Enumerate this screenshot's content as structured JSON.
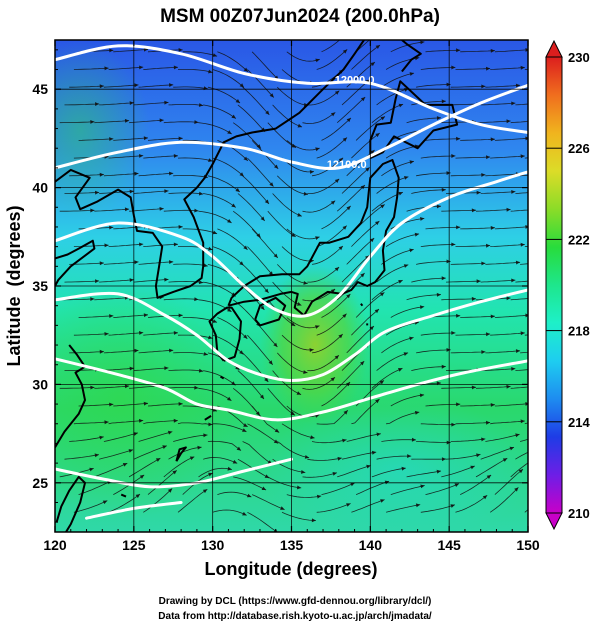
{
  "title": "MSM 00Z07Jun2024 (200.0hPa)",
  "xlabel": "Longitude (degrees)",
  "ylabel": "Latitude  (degrees)",
  "credit_line1": "Drawing by DCL (https://www.gfd-dennou.org/library/dcl/)",
  "credit_line2": "Data from http://database.rish.kyoto-u.ac.jp/arch/jmadata/",
  "map": {
    "lon_range": [
      120,
      150
    ],
    "lat_range": [
      22.5,
      47.5
    ],
    "x_ticks": [
      120,
      125,
      130,
      135,
      140,
      145,
      150
    ],
    "y_ticks": [
      25,
      30,
      35,
      40,
      45
    ],
    "grid": true,
    "contour_labels": [
      {
        "text": "12000.0",
        "lon": 139.0,
        "lat": 45.3
      },
      {
        "text": "12100.0",
        "lon": 138.5,
        "lat": 41.0
      }
    ],
    "contours": [
      [
        [
          120,
          46.5
        ],
        [
          124,
          47.2
        ],
        [
          128,
          46.8
        ],
        [
          132,
          45.8
        ],
        [
          136,
          45.3
        ],
        [
          140,
          45.3
        ],
        [
          144,
          44.0
        ],
        [
          147,
          43.2
        ],
        [
          150,
          42.8
        ]
      ],
      [
        [
          120,
          41.0
        ],
        [
          124,
          41.8
        ],
        [
          128,
          42.3
        ],
        [
          132,
          42.0
        ],
        [
          135,
          41.3
        ],
        [
          138,
          41.0
        ],
        [
          141,
          42.0
        ],
        [
          144,
          43.2
        ],
        [
          147,
          44.3
        ],
        [
          150,
          45.2
        ]
      ],
      [
        [
          120,
          37.3
        ],
        [
          124,
          38.2
        ],
        [
          128,
          37.5
        ],
        [
          130,
          36.5
        ],
        [
          132,
          35.0
        ],
        [
          134,
          33.8
        ],
        [
          136,
          33.5
        ],
        [
          138,
          34.5
        ],
        [
          140,
          36.5
        ],
        [
          142,
          38.2
        ],
        [
          145,
          39.5
        ],
        [
          148,
          40.3
        ],
        [
          150,
          40.8
        ]
      ],
      [
        [
          120,
          34.3
        ],
        [
          124,
          34.6
        ],
        [
          127,
          33.5
        ],
        [
          129,
          32.5
        ],
        [
          131,
          31.2
        ],
        [
          133,
          30.5
        ],
        [
          135,
          30.2
        ],
        [
          137,
          30.5
        ],
        [
          139,
          31.5
        ],
        [
          141,
          32.7
        ],
        [
          144,
          33.5
        ],
        [
          147,
          34.2
        ],
        [
          150,
          34.8
        ]
      ],
      [
        [
          120,
          31.3
        ],
        [
          124,
          30.5
        ],
        [
          127,
          29.8
        ],
        [
          129,
          29.0
        ],
        [
          131,
          28.7
        ],
        [
          134,
          28.2
        ],
        [
          137,
          28.6
        ],
        [
          140,
          29.3
        ],
        [
          143,
          30.0
        ],
        [
          146,
          30.6
        ],
        [
          150,
          31.2
        ]
      ],
      [
        [
          120,
          25.7
        ],
        [
          123,
          25.2
        ],
        [
          126,
          24.8
        ],
        [
          129,
          25.0
        ],
        [
          132,
          25.6
        ],
        [
          135,
          26.2
        ]
      ],
      [
        [
          122,
          23.2
        ],
        [
          125,
          23.7
        ],
        [
          128,
          24.0
        ]
      ]
    ],
    "coastlines": [
      [
        [
          130.7,
          31.2
        ],
        [
          131.4,
          31.4
        ],
        [
          131.7,
          32.3
        ],
        [
          131.8,
          33.2
        ],
        [
          131.2,
          33.9
        ],
        [
          130.9,
          33.9
        ],
        [
          130.3,
          33.6
        ],
        [
          129.8,
          33.2
        ],
        [
          130.2,
          32.5
        ],
        [
          130.3,
          31.6
        ],
        [
          130.7,
          31.2
        ]
      ],
      [
        [
          131.0,
          34.0
        ],
        [
          132.0,
          34.2
        ],
        [
          133.0,
          34.3
        ],
        [
          134.3,
          34.6
        ],
        [
          135.0,
          34.7
        ],
        [
          135.4,
          34.6
        ],
        [
          135.2,
          33.9
        ],
        [
          135.8,
          33.5
        ],
        [
          136.3,
          34.2
        ],
        [
          136.9,
          34.5
        ],
        [
          137.3,
          34.7
        ],
        [
          138.2,
          34.6
        ],
        [
          138.8,
          34.8
        ],
        [
          139.2,
          35.2
        ],
        [
          139.8,
          35.0
        ],
        [
          140.3,
          35.2
        ],
        [
          140.9,
          35.8
        ],
        [
          140.8,
          36.8
        ],
        [
          141.0,
          37.8
        ],
        [
          141.5,
          38.5
        ],
        [
          141.7,
          39.5
        ],
        [
          141.8,
          40.5
        ],
        [
          141.4,
          41.4
        ],
        [
          140.8,
          41.2
        ],
        [
          140.0,
          40.5
        ],
        [
          139.9,
          39.8
        ],
        [
          139.8,
          39.0
        ],
        [
          139.4,
          38.2
        ],
        [
          138.6,
          37.5
        ],
        [
          137.4,
          37.2
        ],
        [
          136.8,
          37.2
        ],
        [
          136.0,
          36.0
        ],
        [
          135.5,
          35.6
        ],
        [
          134.4,
          35.6
        ],
        [
          133.0,
          35.5
        ],
        [
          132.0,
          35.0
        ],
        [
          131.2,
          34.4
        ],
        [
          131.0,
          34.0
        ]
      ],
      [
        [
          132.7,
          33.3
        ],
        [
          133.0,
          33.0
        ],
        [
          134.2,
          33.3
        ],
        [
          134.6,
          34.0
        ],
        [
          134.0,
          34.4
        ],
        [
          133.0,
          34.0
        ],
        [
          132.7,
          33.3
        ]
      ],
      [
        [
          140.0,
          41.5
        ],
        [
          140.8,
          41.8
        ],
        [
          141.5,
          42.6
        ],
        [
          143.0,
          42.0
        ],
        [
          144.0,
          42.9
        ],
        [
          145.5,
          43.2
        ],
        [
          145.2,
          44.2
        ],
        [
          143.5,
          44.2
        ],
        [
          141.9,
          45.4
        ],
        [
          141.6,
          44.5
        ],
        [
          141.3,
          43.3
        ],
        [
          140.4,
          43.2
        ],
        [
          140.0,
          42.4
        ],
        [
          140.0,
          41.5
        ]
      ],
      [
        [
          142.0,
          45.9
        ],
        [
          142.6,
          46.5
        ],
        [
          143.2,
          46.8
        ],
        [
          142.3,
          47.3
        ],
        [
          142.0,
          47.5
        ]
      ],
      [
        [
          139.6,
          47.5
        ],
        [
          139.0,
          46.8
        ],
        [
          138.3,
          46.0
        ],
        [
          137.0,
          45.0
        ],
        [
          135.5,
          43.8
        ],
        [
          134.0,
          43.0
        ],
        [
          132.5,
          42.8
        ],
        [
          131.5,
          42.6
        ],
        [
          130.7,
          42.3
        ],
        [
          130.0,
          41.2
        ],
        [
          129.5,
          40.5
        ],
        [
          129.0,
          40.0
        ],
        [
          128.2,
          39.4
        ],
        [
          128.8,
          38.5
        ],
        [
          129.4,
          37.2
        ],
        [
          129.4,
          36.0
        ],
        [
          129.3,
          35.4
        ],
        [
          128.6,
          35.0
        ],
        [
          127.5,
          34.7
        ],
        [
          126.5,
          34.4
        ],
        [
          126.4,
          35.0
        ],
        [
          126.6,
          36.0
        ],
        [
          126.8,
          37.0
        ],
        [
          126.2,
          37.7
        ],
        [
          125.2,
          37.8
        ],
        [
          125.0,
          38.6
        ],
        [
          124.8,
          39.5
        ],
        [
          124.0,
          39.9
        ],
        [
          122.7,
          39.3
        ],
        [
          121.6,
          38.9
        ],
        [
          121.3,
          39.5
        ],
        [
          122.2,
          40.5
        ],
        [
          121.0,
          40.9
        ],
        [
          120.0,
          40.3
        ]
      ],
      [
        [
          120.0,
          36.4
        ],
        [
          120.8,
          36.6
        ],
        [
          121.5,
          36.9
        ],
        [
          122.4,
          37.3
        ],
        [
          122.5,
          36.9
        ],
        [
          121.0,
          36.0
        ],
        [
          120.2,
          35.3
        ],
        [
          120.0,
          35.0
        ]
      ],
      [
        [
          120.0,
          26.8
        ],
        [
          120.6,
          27.6
        ],
        [
          121.5,
          28.5
        ],
        [
          121.9,
          29.2
        ],
        [
          121.7,
          30.0
        ],
        [
          121.3,
          30.6
        ],
        [
          121.9,
          30.9
        ],
        [
          121.4,
          31.5
        ],
        [
          120.9,
          32.0
        ]
      ],
      [
        [
          120.1,
          23.0
        ],
        [
          120.4,
          23.8
        ],
        [
          120.9,
          24.6
        ],
        [
          121.5,
          25.3
        ],
        [
          121.9,
          25.0
        ],
        [
          121.6,
          24.0
        ],
        [
          121.0,
          22.9
        ],
        [
          120.7,
          22.5
        ]
      ],
      [
        [
          127.7,
          26.1
        ],
        [
          128.0,
          26.5
        ],
        [
          128.3,
          26.8
        ],
        [
          127.9,
          26.7
        ],
        [
          127.7,
          26.1
        ]
      ],
      [
        [
          124.2,
          24.4
        ],
        [
          124.5,
          24.3
        ]
      ],
      [
        [
          129.5,
          28.2
        ],
        [
          129.9,
          28.4
        ]
      ],
      [
        [
          130.5,
          30.4
        ],
        [
          130.7,
          30.3
        ]
      ],
      [
        [
          139.8,
          33.1
        ],
        [
          139.8,
          33.0
        ]
      ],
      [
        [
          139.4,
          34.1
        ],
        [
          139.5,
          34.0
        ]
      ]
    ]
  },
  "colorbar": {
    "ticks": [
      230,
      226,
      222,
      218,
      214,
      210
    ],
    "range": [
      210,
      230
    ],
    "colors": [
      "#c800c8",
      "#6e1ee6",
      "#1e3ce6",
      "#1e8cf0",
      "#1ecdf0",
      "#1ef0c8",
      "#1ee68c",
      "#28dc3c",
      "#8cdc28",
      "#dcdc28",
      "#f0b41e",
      "#f06e1e",
      "#dc1e1e"
    ]
  }
}
